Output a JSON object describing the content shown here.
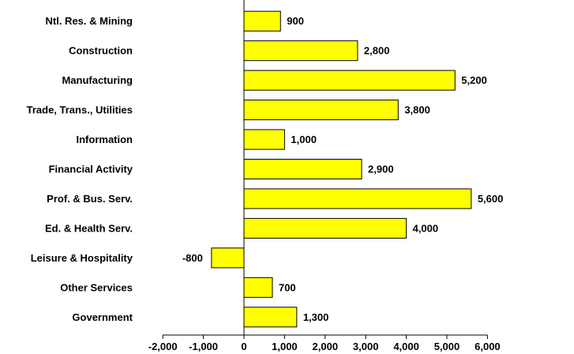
{
  "chart_data": {
    "type": "bar",
    "orientation": "horizontal",
    "categories": [
      "Ntl. Res. & Mining",
      "Construction",
      "Manufacturing",
      "Trade, Trans., Utilities",
      "Information",
      "Financial Activity",
      "Prof. & Bus. Serv.",
      "Ed. & Health Serv.",
      "Leisure & Hospitality",
      "Other Services",
      "Government"
    ],
    "values": [
      900,
      2800,
      5200,
      3800,
      1000,
      2900,
      5600,
      4000,
      -800,
      700,
      1300
    ],
    "value_labels": [
      "900",
      "2,800",
      "5,200",
      "3,800",
      "1,000",
      "2,900",
      "5,600",
      "4,000",
      "-800",
      "700",
      "1,300"
    ],
    "xlim": [
      -2000,
      6000
    ],
    "xticks": [
      -2000,
      -1000,
      0,
      1000,
      2000,
      3000,
      4000,
      5000,
      6000
    ],
    "xtick_labels": [
      "-2,000",
      "-1,000",
      "0",
      "1,000",
      "2,000",
      "3,000",
      "4,000",
      "5,000",
      "6,000"
    ],
    "bar_color": "#ffff00",
    "bar_edge_color": "#000000",
    "title": "",
    "xlabel": "",
    "ylabel": "",
    "grid": false
  }
}
